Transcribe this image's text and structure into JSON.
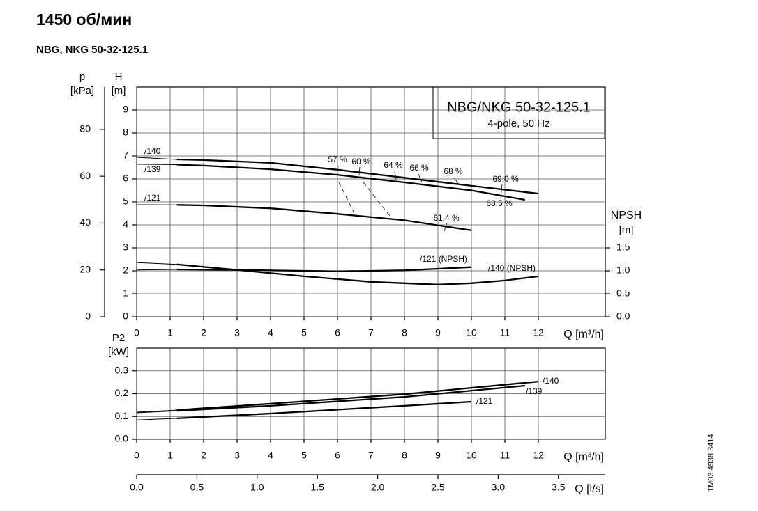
{
  "chart_data": [
    {
      "type": "line",
      "title": "1450 об/мин",
      "subtitle": "NBG, NKG 50-32-125.1",
      "box_title": "NBG/NKG 50-32-125.1",
      "box_subtitle": "4-pole, 50 Hz",
      "xlabel": "Q [m³/h]",
      "xlim": [
        0,
        14
      ],
      "xticks": [
        0,
        1,
        2,
        3,
        4,
        5,
        6,
        7,
        8,
        9,
        10,
        11,
        12
      ],
      "ylabel": "H",
      "yunit": "[m]",
      "ylim": [
        0,
        10
      ],
      "yticks": [
        0,
        1,
        2,
        3,
        4,
        5,
        6,
        7,
        8,
        9
      ],
      "plabel": "p",
      "punit": "[kPa]",
      "plim": [
        0,
        98.1
      ],
      "pticks": [
        0,
        20,
        40,
        60,
        80
      ],
      "y2label": "NPSH",
      "y2unit": "[m]",
      "y2lim": [
        0,
        5
      ],
      "y2ticks": [
        {
          "value": 0,
          "label": "0.0"
        },
        {
          "value": 0.5,
          "label": "0.5"
        },
        {
          "value": 1,
          "label": "1.0"
        },
        {
          "value": 1.5,
          "label": "1.5"
        }
      ],
      "grid": true,
      "series": [
        {
          "name": "/140",
          "color": "#000000",
          "x": [
            0,
            1.2,
            2,
            4,
            6,
            8,
            10,
            12
          ],
          "values": [
            6.94,
            6.85,
            6.82,
            6.7,
            6.4,
            6.05,
            5.7,
            5.36
          ]
        },
        {
          "name": "/139",
          "color": "#000000",
          "x": [
            0,
            1.2,
            2,
            4,
            6,
            8,
            10,
            11.6
          ],
          "values": [
            6.64,
            6.62,
            6.58,
            6.42,
            6.18,
            5.85,
            5.5,
            5.09
          ]
        },
        {
          "name": "/121",
          "color": "#000000",
          "x": [
            0,
            1.2,
            2,
            4,
            6,
            8,
            10
          ],
          "values": [
            4.88,
            4.87,
            4.85,
            4.72,
            4.48,
            4.2,
            3.76
          ]
        },
        {
          "name": "/121 (NPSH)",
          "color": "#000000",
          "axis": "y2",
          "x": [
            0,
            1.2,
            3,
            6,
            8,
            10
          ],
          "values": [
            1.02,
            1.03,
            1.02,
            0.99,
            1.01,
            1.08
          ]
        },
        {
          "name": "/140 (NPSH)",
          "color": "#000000",
          "axis": "y2",
          "x": [
            0,
            1.2,
            3,
            5,
            7,
            9,
            10,
            11,
            12
          ],
          "values": [
            1.18,
            1.14,
            1.02,
            0.88,
            0.76,
            0.7,
            0.73,
            0.79,
            0.88
          ]
        }
      ],
      "annotations": [
        "57 %",
        "60 %",
        "64 %",
        "66 %",
        "68 %",
        "69.0 %",
        "68.5 %",
        "61.4 %"
      ]
    },
    {
      "type": "line",
      "xlabel": "Q [m³/h]",
      "xlim": [
        0,
        14
      ],
      "xticks": [
        0,
        1,
        2,
        3,
        4,
        5,
        6,
        7,
        8,
        9,
        10,
        11,
        12
      ],
      "ylabel": "P2",
      "yunit": "[kW]",
      "ylim": [
        0,
        0.4
      ],
      "yticks": [
        {
          "value": 0,
          "label": "0.0"
        },
        {
          "value": 0.1,
          "label": "0.1"
        },
        {
          "value": 0.2,
          "label": "0.2"
        },
        {
          "value": 0.3,
          "label": "0.3"
        }
      ],
      "x2label": "Q [l/s]",
      "x2lim": [
        0,
        3.889
      ],
      "x2ticks": [
        {
          "value": 0,
          "label": "0.0"
        },
        {
          "value": 0.5,
          "label": "0.5"
        },
        {
          "value": 1,
          "label": "1.0"
        },
        {
          "value": 1.5,
          "label": "1.5"
        },
        {
          "value": 2,
          "label": "2.0"
        },
        {
          "value": 2.5,
          "label": "2.5"
        },
        {
          "value": 3,
          "label": "3.0"
        },
        {
          "value": 3.5,
          "label": "3.5"
        }
      ],
      "grid": true,
      "series": [
        {
          "name": "/140",
          "color": "#000000",
          "x": [
            0,
            1.2,
            4,
            8,
            12
          ],
          "values": [
            0.119,
            0.128,
            0.156,
            0.198,
            0.253
          ]
        },
        {
          "name": "/139",
          "color": "#000000",
          "x": [
            0,
            1.2,
            4,
            8,
            11.6
          ],
          "values": [
            0.116,
            0.125,
            0.147,
            0.186,
            0.235
          ]
        },
        {
          "name": "/121",
          "color": "#000000",
          "x": [
            0,
            1.2,
            4,
            8,
            10
          ],
          "values": [
            0.085,
            0.092,
            0.113,
            0.147,
            0.165
          ]
        }
      ],
      "note": "TM03 4938 3414"
    }
  ]
}
